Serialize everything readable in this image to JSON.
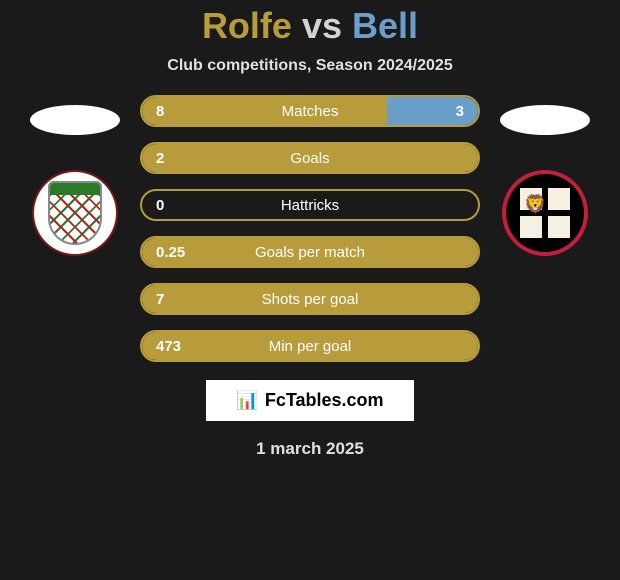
{
  "title": {
    "player1": "Rolfe",
    "vs": "vs",
    "player2": "Bell"
  },
  "subtitle": "Club competitions, Season 2024/2025",
  "colors": {
    "accent_left": "#b89b3a",
    "accent_right": "#6b9ec8",
    "background": "#1a1a1a"
  },
  "stats": [
    {
      "label": "Matches",
      "left_val": "8",
      "right_val": "3",
      "left_pct": 73,
      "right_pct": 27
    },
    {
      "label": "Goals",
      "left_val": "2",
      "right_val": "",
      "left_pct": 100,
      "right_pct": 0
    },
    {
      "label": "Hattricks",
      "left_val": "0",
      "right_val": "",
      "left_pct": 0,
      "right_pct": 0
    },
    {
      "label": "Goals per match",
      "left_val": "0.25",
      "right_val": "",
      "left_pct": 100,
      "right_pct": 0
    },
    {
      "label": "Shots per goal",
      "left_val": "7",
      "right_val": "",
      "left_pct": 100,
      "right_pct": 0
    },
    {
      "label": "Min per goal",
      "left_val": "473",
      "right_val": "",
      "left_pct": 100,
      "right_pct": 0
    }
  ],
  "brand": "FcTables.com",
  "date": "1 march 2025",
  "badges": {
    "left_name": "chesham-united-badge",
    "right_name": "truro-city-badge"
  }
}
